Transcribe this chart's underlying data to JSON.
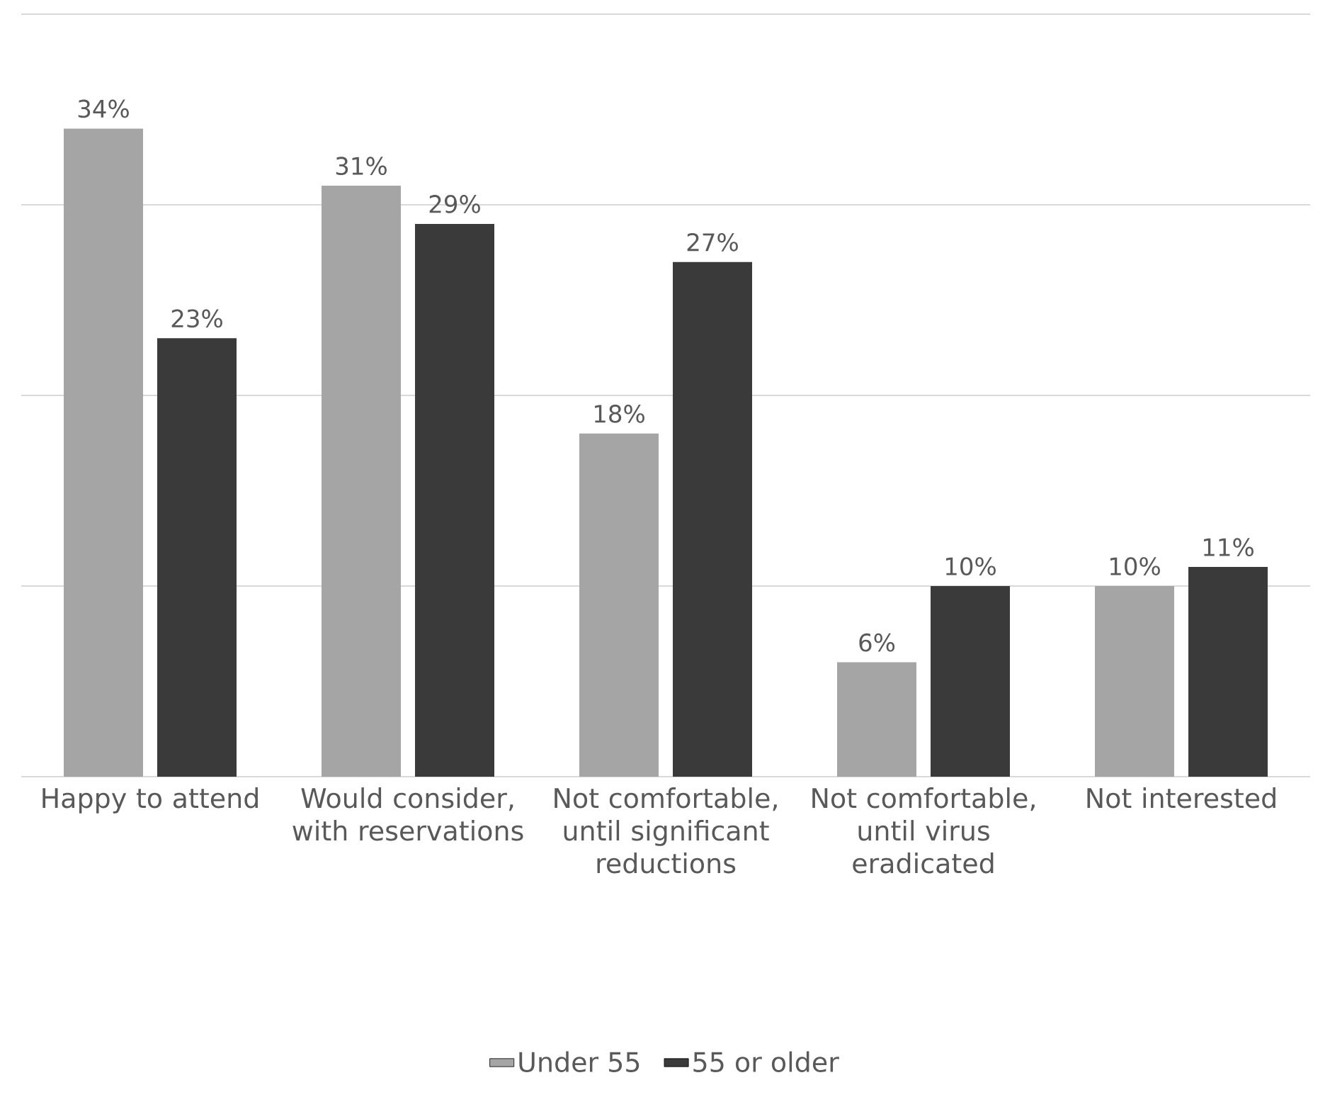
{
  "chart_data": {
    "type": "bar",
    "categories": [
      "Happy to attend",
      "Would consider, with reservations",
      "Not comfortable, until significant reductions",
      "Not comfortable, until virus eradicated",
      "Not interested"
    ],
    "series": [
      {
        "name": "Under 55",
        "color": "#a5a5a5",
        "values": [
          34,
          31,
          18,
          6,
          10
        ],
        "value_labels": [
          "34%",
          "31%",
          "18%",
          "6%",
          "10%"
        ]
      },
      {
        "name": "55 or older",
        "color": "#3a3a3a",
        "values": [
          23,
          29,
          27,
          10,
          11
        ],
        "value_labels": [
          "23%",
          "29%",
          "27%",
          "10%",
          "11%"
        ]
      }
    ],
    "ylim": [
      0,
      40
    ],
    "yticks": [
      {
        "value": 0,
        "label": null
      },
      {
        "value": 10,
        "label": null
      },
      {
        "value": 20,
        "label": null
      },
      {
        "value": 30,
        "label": null
      },
      {
        "value": 40,
        "label": null
      }
    ],
    "grid": "y",
    "tick_labels": "x",
    "legend": "bottom"
  }
}
